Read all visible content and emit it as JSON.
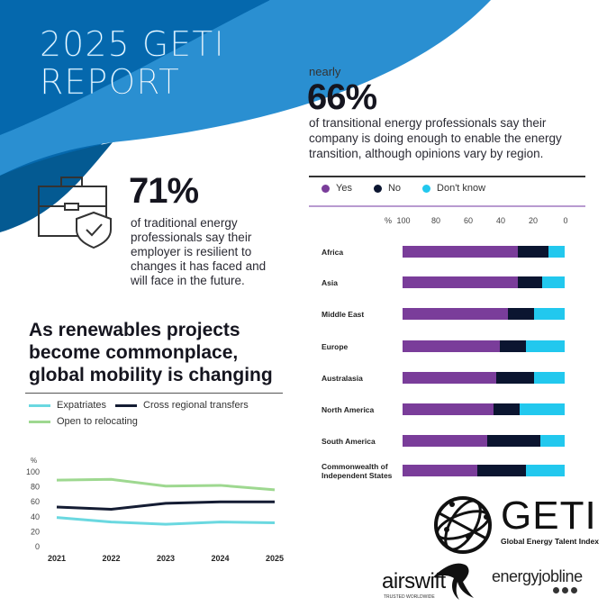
{
  "header": {
    "title_line1": "2025 GETI",
    "title_line2": "REPORT"
  },
  "colors": {
    "dark_blue": "#0568ad",
    "light_blue": "#2a8fd1",
    "navy": "#045a92",
    "yes": "#7a3d9a",
    "no": "#0b1530",
    "dont_know": "#22c8ee",
    "expatriates": "#6ad8e0",
    "cross_regional": "#141c33",
    "open_relocating": "#9ed890"
  },
  "stat_transition": {
    "prefix": "nearly",
    "value": "66%",
    "text": "of transitional energy professionals say their company is doing enough to enable the energy transition, although opinions vary by region."
  },
  "stat_traditional": {
    "icon": "briefcase-shield-check-icon",
    "value": "71%",
    "text": "of traditional energy professionals say their employer is resilient to changes it has faced and will face in the future."
  },
  "mobility": {
    "heading": "As renewables projects become commonplace, global mobility is changing"
  },
  "chart_data": [
    {
      "type": "bar",
      "stacked": true,
      "orientation": "horizontal",
      "axis_reversed": true,
      "unit_label": "%",
      "xlim": [
        0,
        100
      ],
      "ticks": [
        "100",
        "80",
        "60",
        "40",
        "20",
        "0"
      ],
      "categories": [
        "Africa",
        "Asia",
        "Middle East",
        "Europe",
        "Australasia",
        "North America",
        "South America",
        "Commonwealth of Independent States"
      ],
      "series": [
        {
          "name": "Yes",
          "color": "#7a3d9a",
          "values": [
            71,
            71,
            65,
            60,
            58,
            56,
            52,
            46
          ]
        },
        {
          "name": "No",
          "color": "#0b1530",
          "values": [
            19,
            15,
            16,
            16,
            23,
            16,
            33,
            30
          ]
        },
        {
          "name": "Don't know",
          "color": "#22c8ee",
          "values": [
            10,
            14,
            19,
            24,
            19,
            28,
            15,
            24
          ]
        }
      ],
      "legend": "top"
    },
    {
      "type": "line",
      "x": [
        "2021",
        "2022",
        "2023",
        "2024",
        "2025"
      ],
      "unit_label": "%",
      "ylim": [
        0,
        100
      ],
      "yticks": [
        "0",
        "20",
        "40",
        "60",
        "80",
        "100"
      ],
      "series": [
        {
          "name": "Expatriates",
          "color": "#6ad8e0",
          "values": [
            39,
            33,
            30,
            33,
            32
          ]
        },
        {
          "name": "Cross regional transfers",
          "color": "#141c33",
          "values": [
            53,
            50,
            58,
            60,
            60
          ]
        },
        {
          "name": "Open to relocating",
          "color": "#9ed890",
          "values": [
            89,
            90,
            81,
            82,
            76
          ]
        }
      ],
      "legend": "top-left",
      "grid": false
    }
  ],
  "logos": {
    "geti_name": "GETI",
    "geti_subtitle": "Global Energy Talent Index",
    "airswift": "airswift",
    "airswift_tagline": "TRUSTED WORLDWIDE",
    "energyjobline": "energyjobline"
  }
}
